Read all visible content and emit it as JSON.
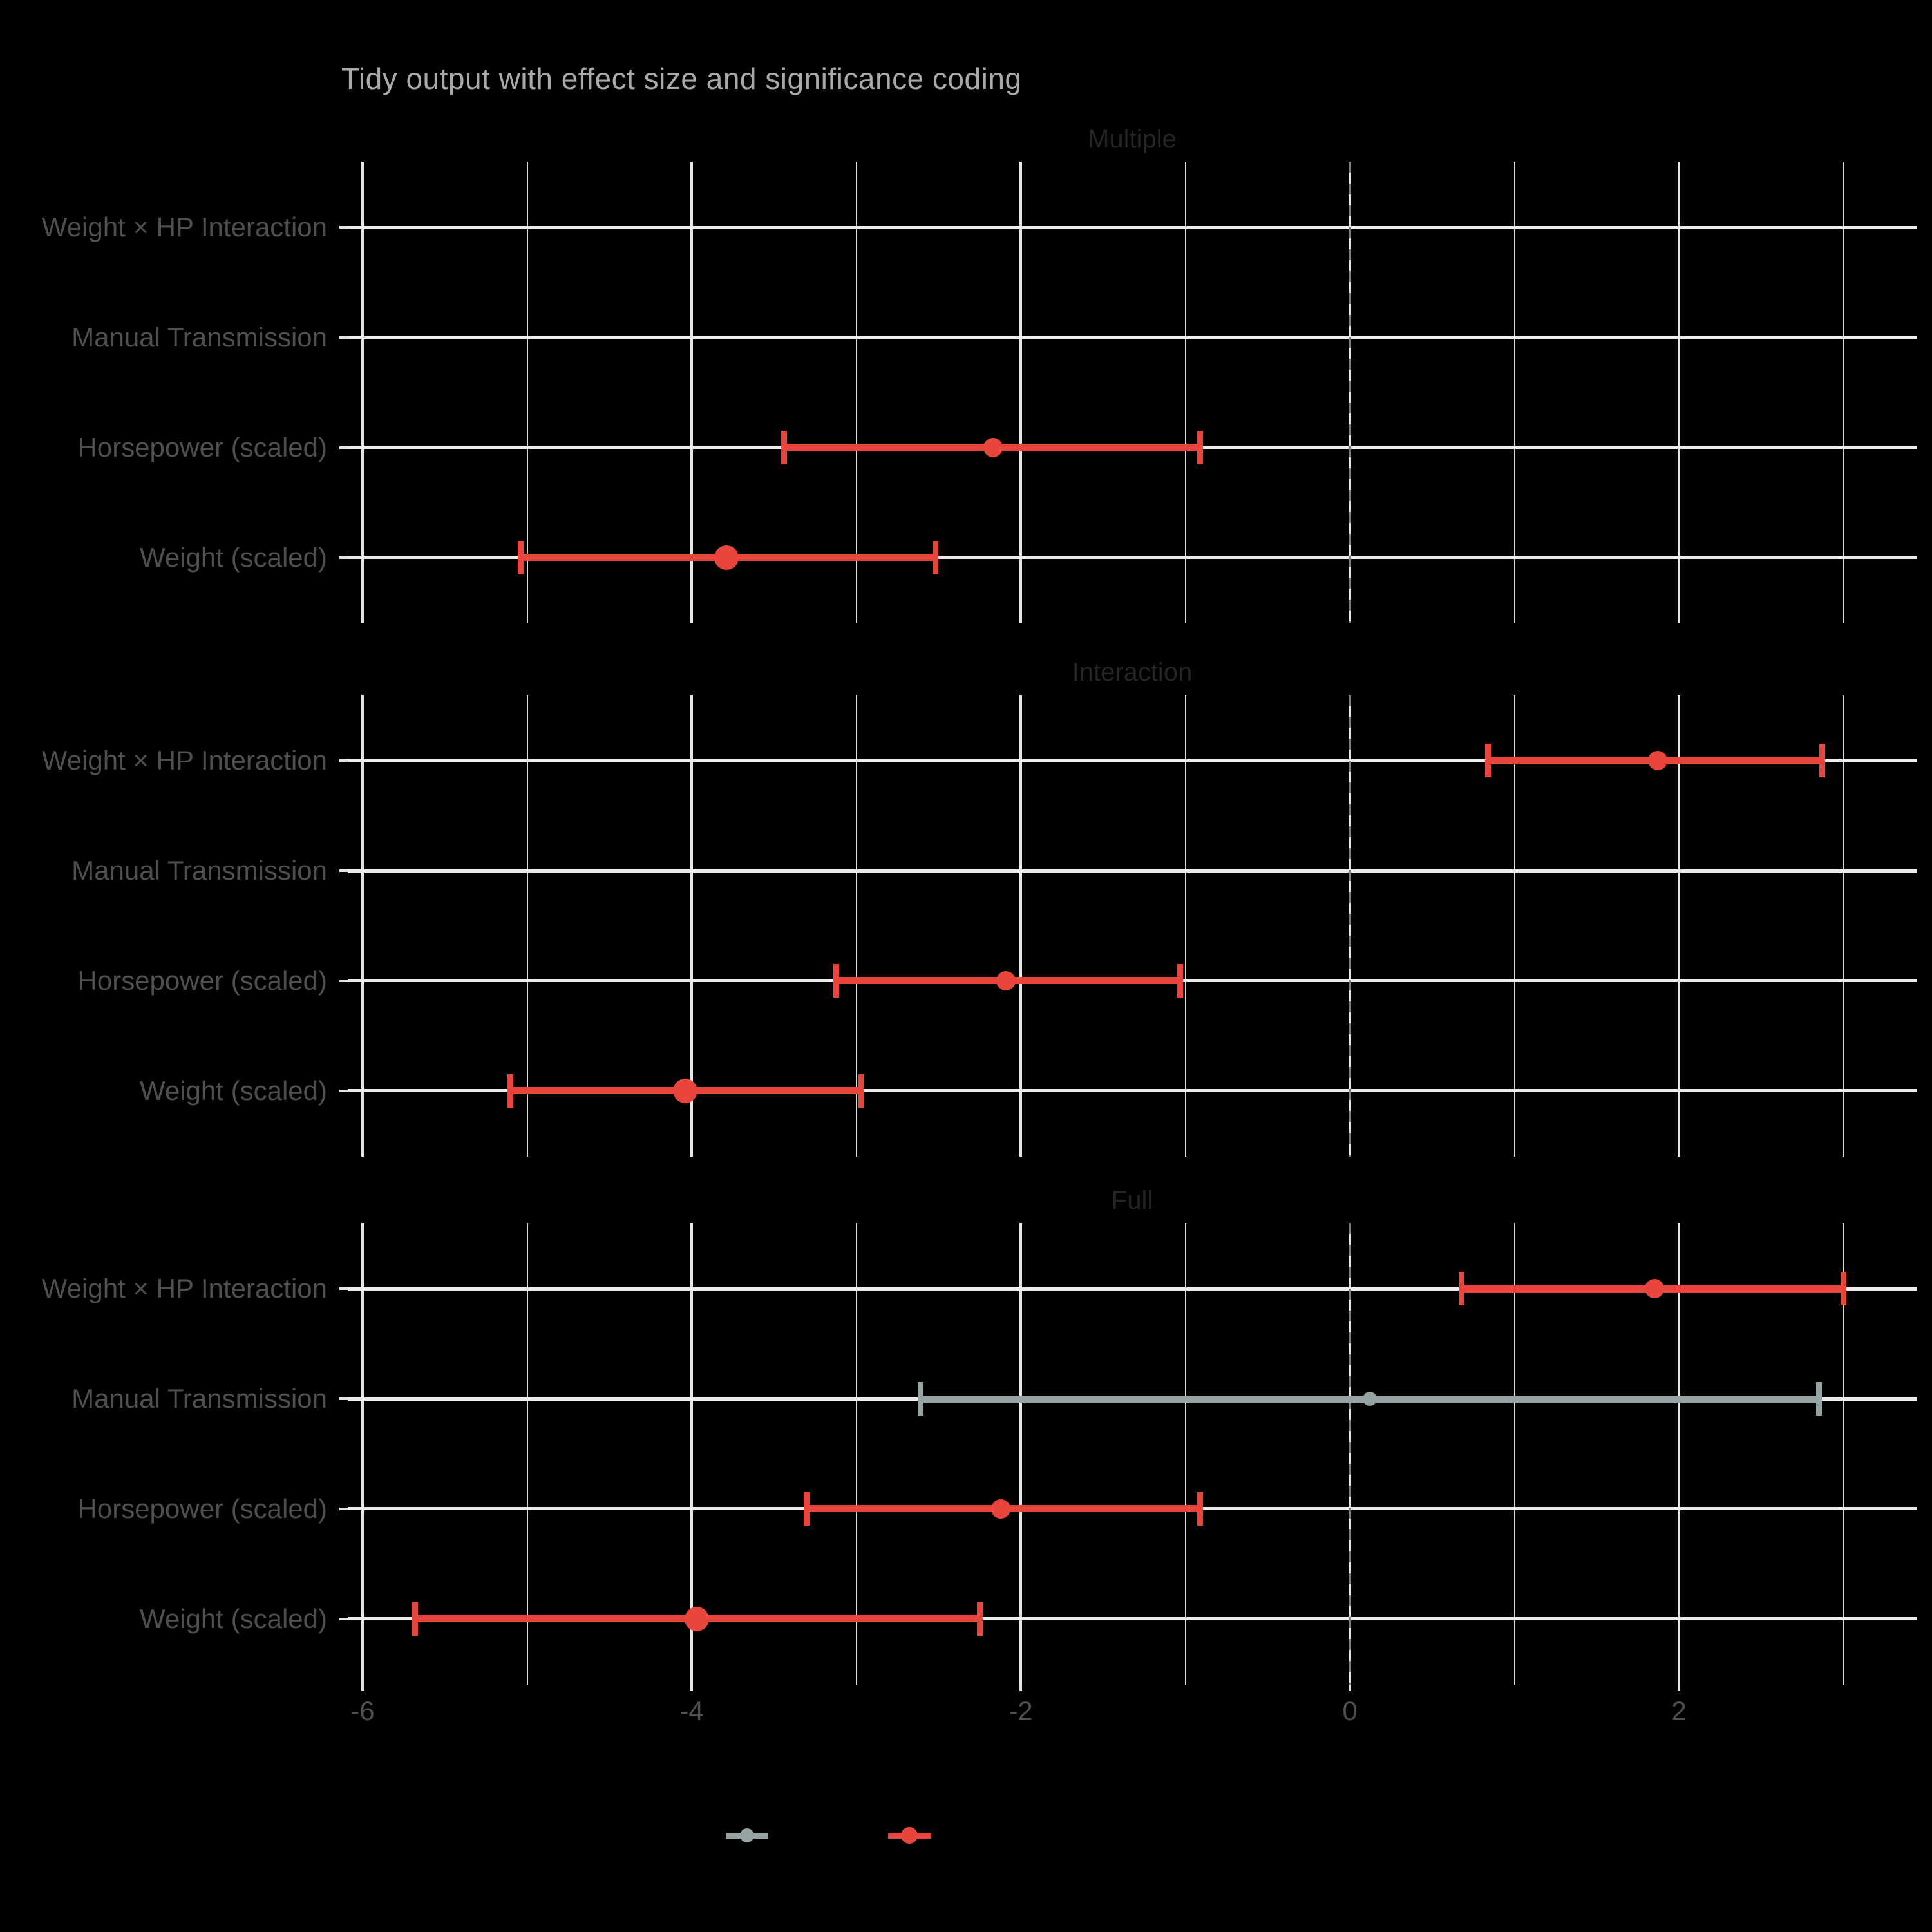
{
  "title": "Tidy output with effect size and significance coding",
  "colors": {
    "background": "#000000",
    "significant": "#e8463c",
    "not_significant": "#95a3a3",
    "grid_major": "#e6e6e6",
    "grid_minor": "#d9d9d9",
    "grid_row": "#ececec",
    "zero_line_dash": "#7d7d7d",
    "title_text": "#a9a9a9",
    "axis_text": "#4f4f4f",
    "facet_text": "#252525"
  },
  "chart_data": {
    "type": "errorbar",
    "title": "Tidy output with effect size and significance coding",
    "orientation": "horizontal",
    "grid": true,
    "x_axis": {
      "tick_labels": [
        "-6",
        "-4",
        "-2",
        "0",
        "2"
      ],
      "tick_values": [
        -6,
        -4,
        -2,
        0,
        2
      ],
      "minor_values": [
        -5,
        -3,
        -1,
        1,
        3
      ],
      "range": [
        -6.1,
        3.44
      ],
      "zero_reference_line": 0,
      "zero_line_style": "dashed"
    },
    "y_categories_top_to_bottom": [
      "Weight × HP Interaction",
      "Manual Transmission",
      "Horsepower (scaled)",
      "Weight (scaled)"
    ],
    "facets": [
      {
        "label": "Multiple",
        "points": [
          {
            "term": "Horsepower (scaled)",
            "row": 2,
            "estimate": -2.17,
            "conf_low": -3.44,
            "conf_high": -0.91,
            "significant": true,
            "marker_diameter_px": 30
          },
          {
            "term": "Weight (scaled)",
            "row": 3,
            "estimate": -3.79,
            "conf_low": -5.04,
            "conf_high": -2.52,
            "significant": true,
            "marker_diameter_px": 38
          }
        ]
      },
      {
        "label": "Interaction",
        "points": [
          {
            "term": "Weight × HP Interaction",
            "row": 0,
            "estimate": 1.87,
            "conf_low": 0.84,
            "conf_high": 2.87,
            "significant": true,
            "marker_diameter_px": 30
          },
          {
            "term": "Horsepower (scaled)",
            "row": 2,
            "estimate": -2.09,
            "conf_low": -3.12,
            "conf_high": -1.03,
            "significant": true,
            "marker_diameter_px": 30
          },
          {
            "term": "Weight (scaled)",
            "row": 3,
            "estimate": -4.04,
            "conf_low": -5.1,
            "conf_high": -2.97,
            "significant": true,
            "marker_diameter_px": 38
          }
        ]
      },
      {
        "label": "Full",
        "points": [
          {
            "term": "Weight × HP Interaction",
            "row": 0,
            "estimate": 1.85,
            "conf_low": 0.68,
            "conf_high": 3.0,
            "significant": true,
            "marker_diameter_px": 30
          },
          {
            "term": "Manual Transmission",
            "row": 1,
            "estimate": 0.12,
            "conf_low": -2.61,
            "conf_high": 2.85,
            "significant": false,
            "marker_diameter_px": 22
          },
          {
            "term": "Horsepower (scaled)",
            "row": 2,
            "estimate": -2.12,
            "conf_low": -3.3,
            "conf_high": -0.91,
            "significant": true,
            "marker_diameter_px": 30
          },
          {
            "term": "Weight (scaled)",
            "row": 3,
            "estimate": -3.97,
            "conf_low": -5.68,
            "conf_high": -2.25,
            "significant": true,
            "marker_diameter_px": 38
          }
        ]
      }
    ],
    "legend": {
      "position": "bottom",
      "items": [
        {
          "key": "not-significant",
          "color": "#95a3a3",
          "label_visible": false
        },
        {
          "key": "significant",
          "color": "#e8463c",
          "label_visible": false
        }
      ]
    }
  }
}
